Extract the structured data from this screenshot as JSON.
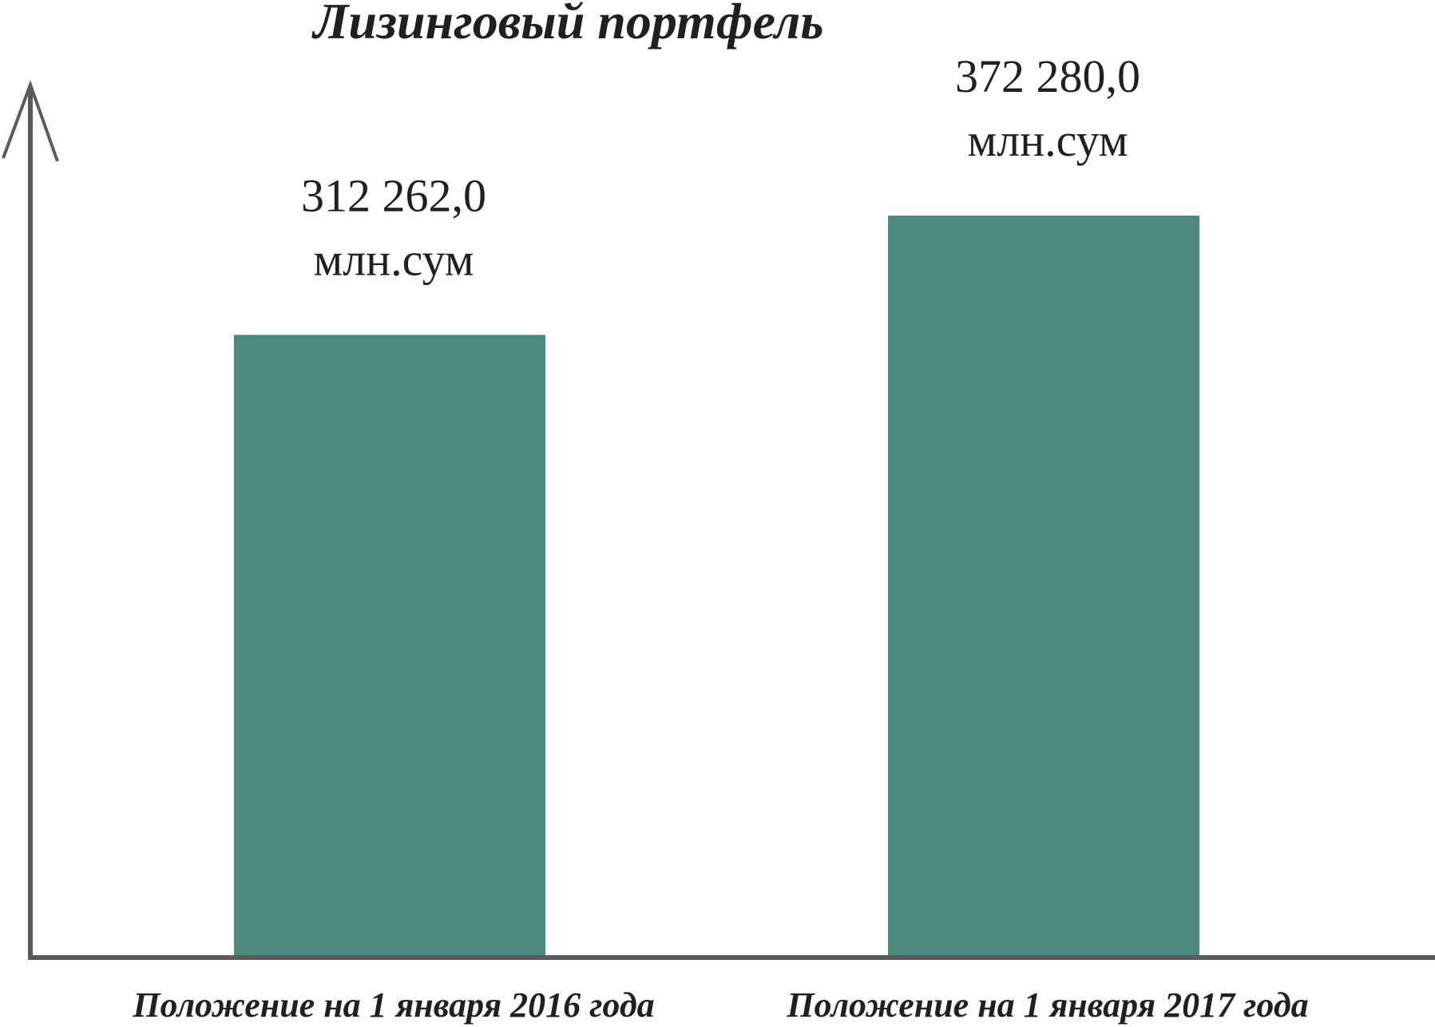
{
  "colors": {
    "bar": "#4d8a7e",
    "axis": "#5b5b5b",
    "text": "#231f20"
  },
  "chart_data": {
    "type": "bar",
    "title": "Лизинговый портфель",
    "xlabel": "",
    "ylabel": "",
    "categories": [
      "Положение на 1 января 2016 года",
      "Положение на 1 января 2017 года"
    ],
    "values": [
      312262.0,
      372280.0
    ],
    "value_labels": [
      "312 262,0",
      "372 280,0"
    ],
    "unit": "млн.сум",
    "grid": false,
    "legend": "none"
  }
}
